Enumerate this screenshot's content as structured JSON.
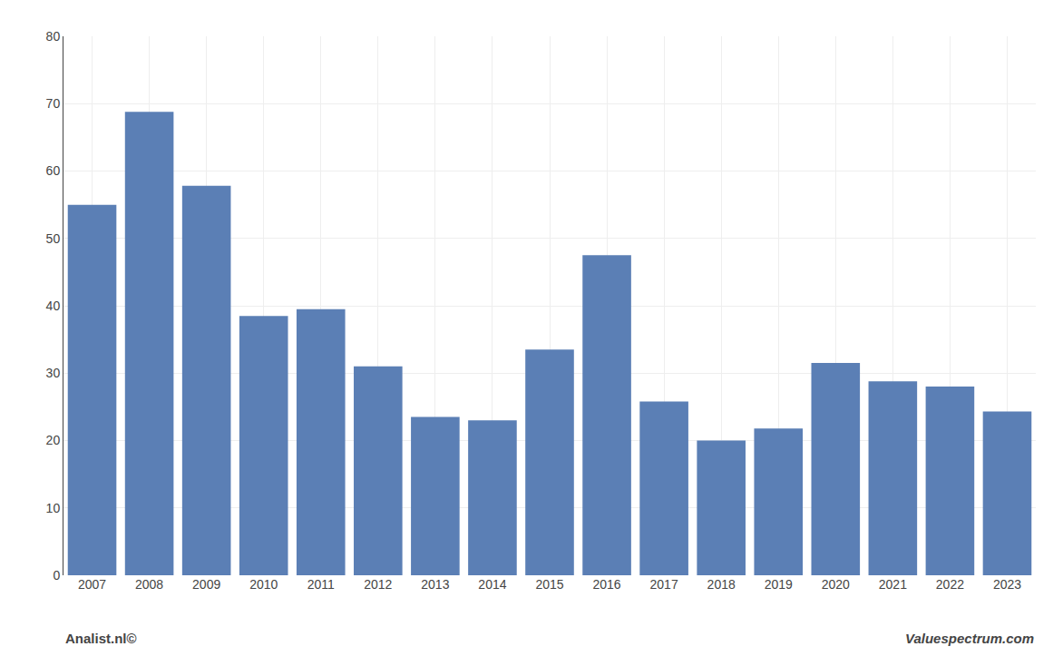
{
  "chart_data": {
    "type": "bar",
    "categories": [
      "2007",
      "2008",
      "2009",
      "2010",
      "2011",
      "2012",
      "2013",
      "2014",
      "2015",
      "2016",
      "2017",
      "2018",
      "2019",
      "2020",
      "2021",
      "2022",
      "2023"
    ],
    "values": [
      55.0,
      68.8,
      57.8,
      38.5,
      39.5,
      31.0,
      23.5,
      23.0,
      33.5,
      47.5,
      25.8,
      20.0,
      21.8,
      31.5,
      28.8,
      28.0,
      24.3
    ],
    "color": "#5b7fb5",
    "ylim": [
      0,
      80
    ],
    "yticks": [
      0,
      10,
      20,
      30,
      40,
      50,
      60,
      70,
      80
    ],
    "grid": true,
    "annotations": [
      "Analist.nl©",
      "Valuespectrum.com"
    ]
  }
}
